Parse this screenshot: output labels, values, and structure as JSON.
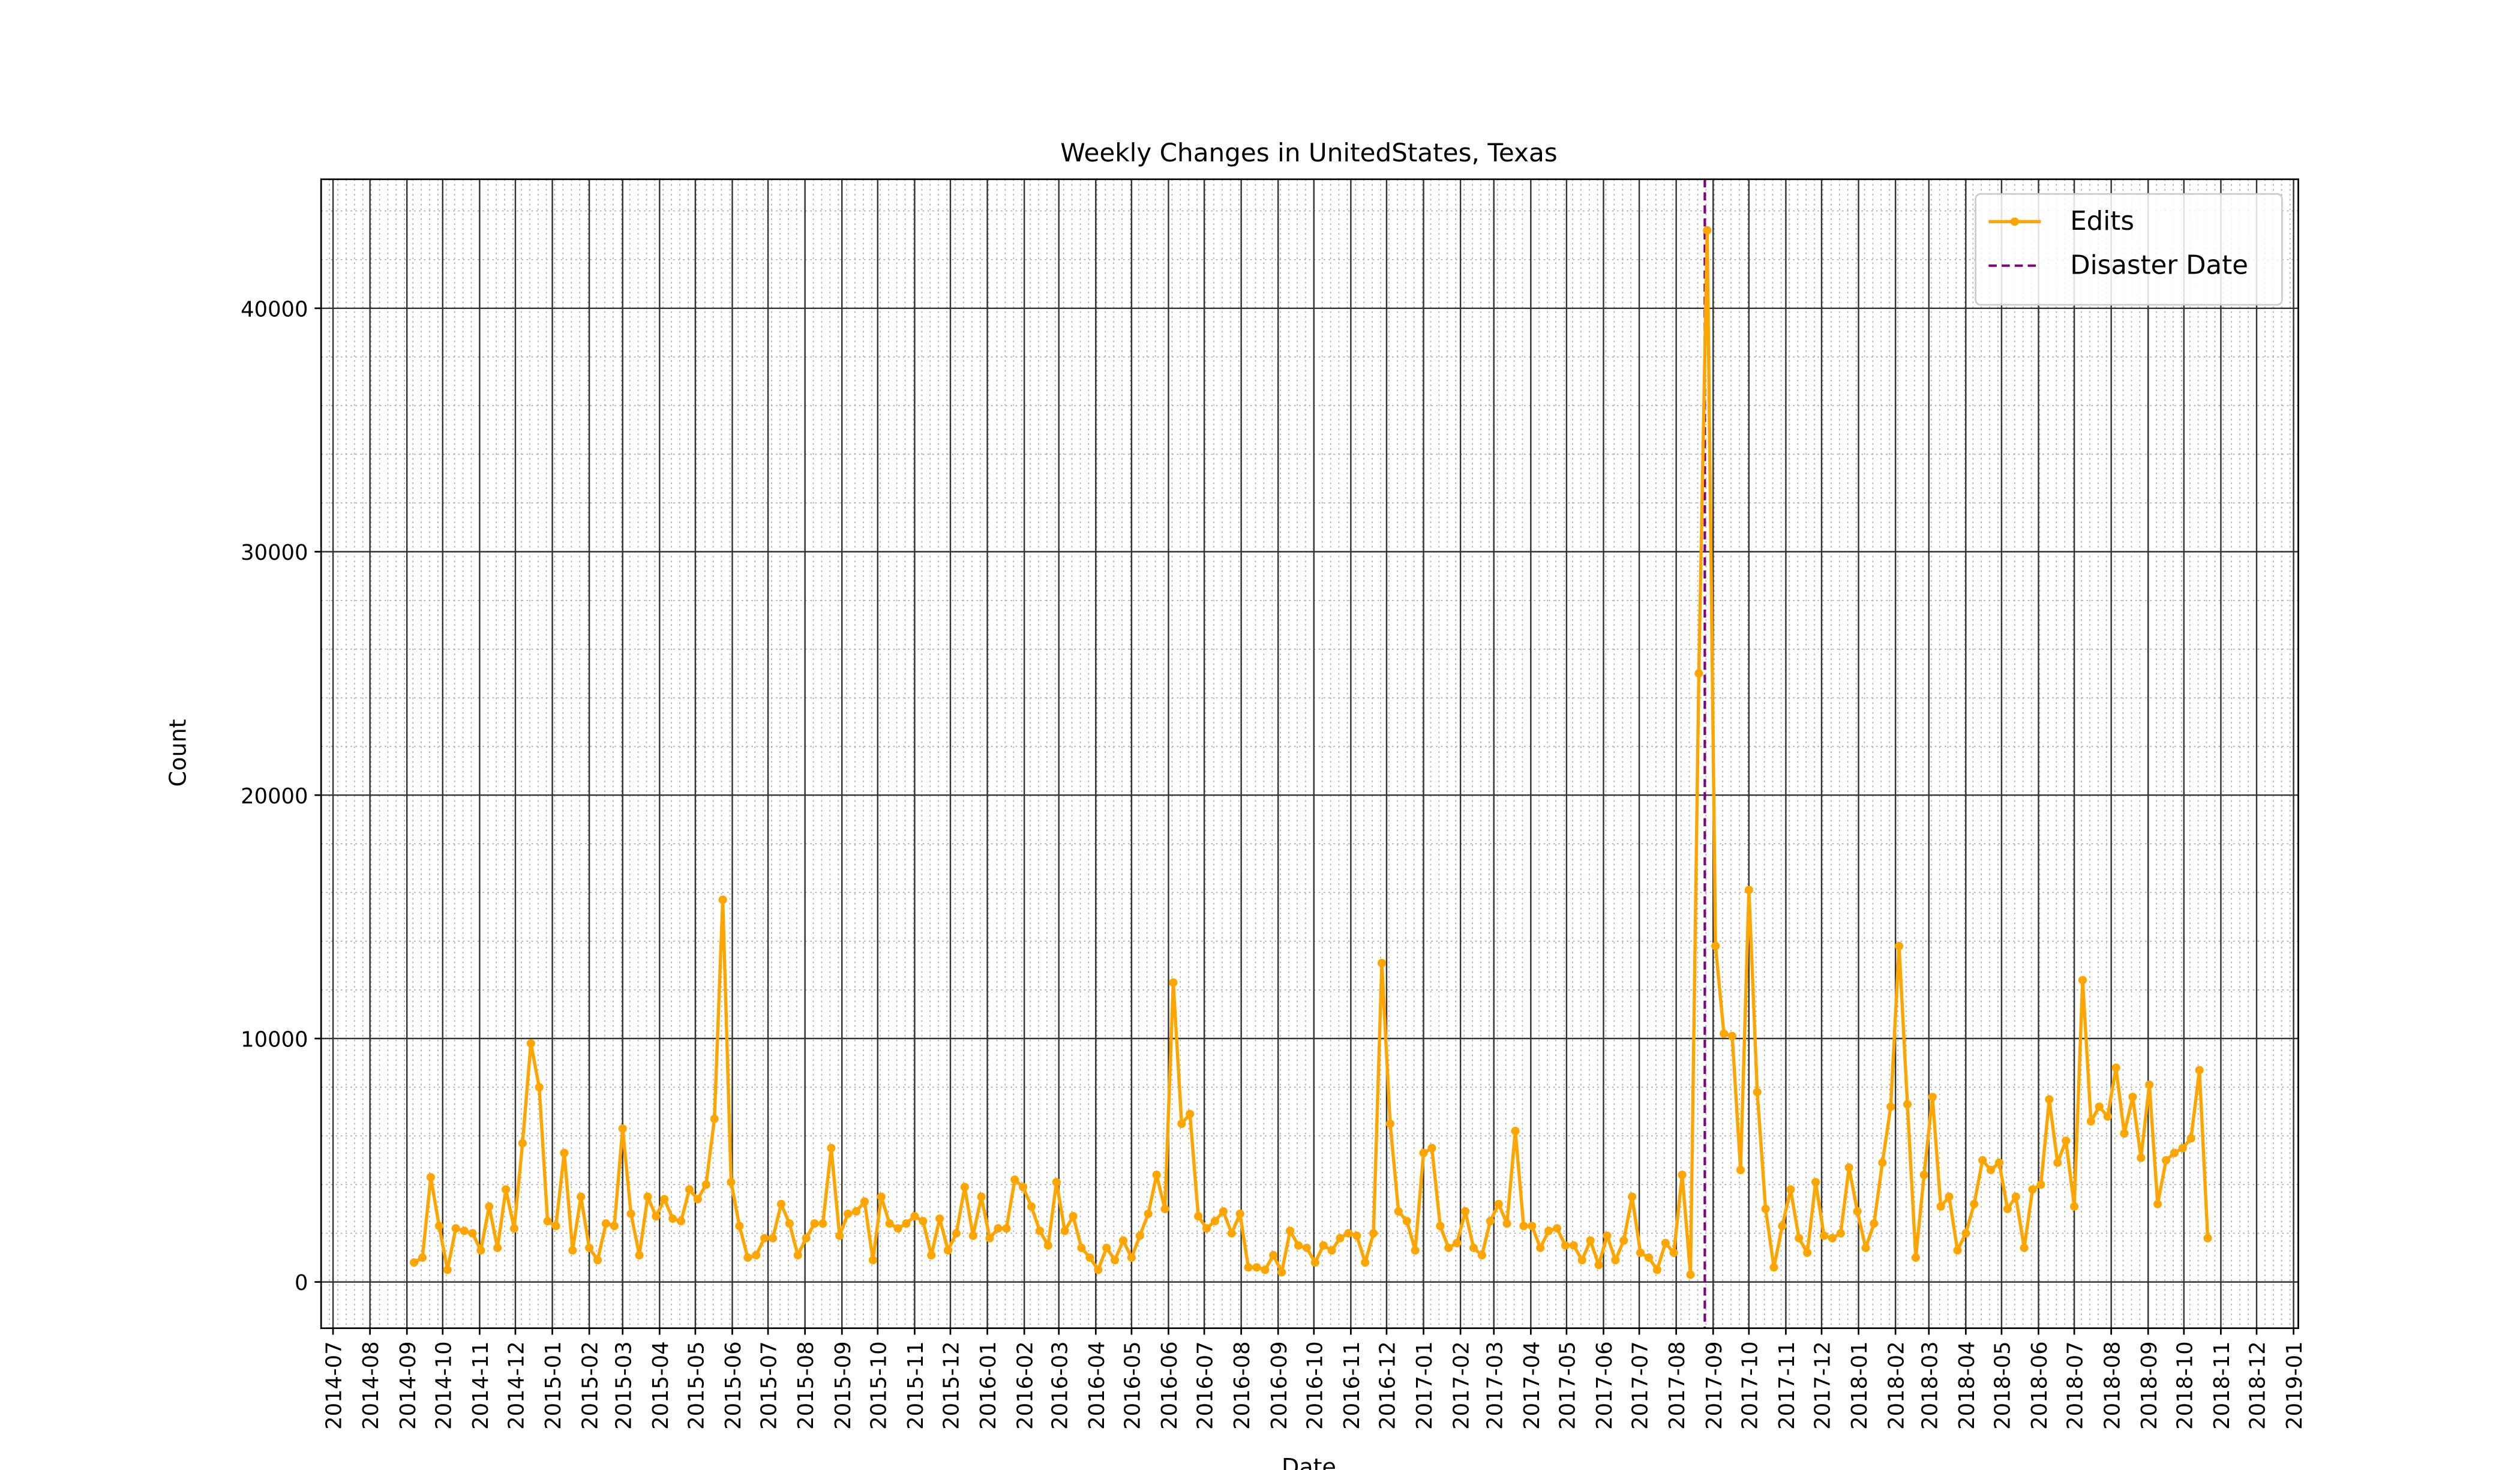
{
  "chart_data": {
    "type": "line",
    "title": "Weekly Changes in UnitedStates, Texas",
    "x_label": "Date",
    "y_label": "Count",
    "x": [
      "2014-09-07",
      "2014-09-14",
      "2014-09-21",
      "2014-09-28",
      "2014-10-05",
      "2014-10-12",
      "2014-10-19",
      "2014-10-26",
      "2014-11-02",
      "2014-11-09",
      "2014-11-16",
      "2014-11-23",
      "2014-11-30",
      "2014-12-07",
      "2014-12-14",
      "2014-12-21",
      "2014-12-28",
      "2015-01-04",
      "2015-01-11",
      "2015-01-18",
      "2015-01-25",
      "2015-02-01",
      "2015-02-08",
      "2015-02-15",
      "2015-02-22",
      "2015-03-01",
      "2015-03-08",
      "2015-03-15",
      "2015-03-22",
      "2015-03-29",
      "2015-04-05",
      "2015-04-12",
      "2015-04-19",
      "2015-04-26",
      "2015-05-03",
      "2015-05-10",
      "2015-05-17",
      "2015-05-24",
      "2015-05-31",
      "2015-06-07",
      "2015-06-14",
      "2015-06-21",
      "2015-06-28",
      "2015-07-05",
      "2015-07-12",
      "2015-07-19",
      "2015-07-26",
      "2015-08-02",
      "2015-08-09",
      "2015-08-16",
      "2015-08-23",
      "2015-08-30",
      "2015-09-06",
      "2015-09-13",
      "2015-09-20",
      "2015-09-27",
      "2015-10-04",
      "2015-10-11",
      "2015-10-18",
      "2015-10-25",
      "2015-11-01",
      "2015-11-08",
      "2015-11-15",
      "2015-11-22",
      "2015-11-29",
      "2015-12-06",
      "2015-12-13",
      "2015-12-20",
      "2015-12-27",
      "2016-01-03",
      "2016-01-10",
      "2016-01-17",
      "2016-01-24",
      "2016-01-31",
      "2016-02-07",
      "2016-02-14",
      "2016-02-21",
      "2016-02-28",
      "2016-03-06",
      "2016-03-13",
      "2016-03-20",
      "2016-03-27",
      "2016-04-03",
      "2016-04-10",
      "2016-04-17",
      "2016-04-24",
      "2016-05-01",
      "2016-05-08",
      "2016-05-15",
      "2016-05-22",
      "2016-05-29",
      "2016-06-05",
      "2016-06-12",
      "2016-06-19",
      "2016-06-26",
      "2016-07-03",
      "2016-07-10",
      "2016-07-17",
      "2016-07-24",
      "2016-07-31",
      "2016-08-07",
      "2016-08-14",
      "2016-08-21",
      "2016-08-28",
      "2016-09-04",
      "2016-09-11",
      "2016-09-18",
      "2016-09-25",
      "2016-10-02",
      "2016-10-09",
      "2016-10-16",
      "2016-10-23",
      "2016-10-30",
      "2016-11-06",
      "2016-11-13",
      "2016-11-20",
      "2016-11-27",
      "2016-12-04",
      "2016-12-11",
      "2016-12-18",
      "2016-12-25",
      "2017-01-01",
      "2017-01-08",
      "2017-01-15",
      "2017-01-22",
      "2017-01-29",
      "2017-02-05",
      "2017-02-12",
      "2017-02-19",
      "2017-02-26",
      "2017-03-05",
      "2017-03-12",
      "2017-03-19",
      "2017-03-26",
      "2017-04-02",
      "2017-04-09",
      "2017-04-16",
      "2017-04-23",
      "2017-04-30",
      "2017-05-07",
      "2017-05-14",
      "2017-05-21",
      "2017-05-28",
      "2017-06-04",
      "2017-06-11",
      "2017-06-18",
      "2017-06-25",
      "2017-07-02",
      "2017-07-09",
      "2017-07-16",
      "2017-07-23",
      "2017-07-30",
      "2017-08-06",
      "2017-08-13",
      "2017-08-20",
      "2017-08-27",
      "2017-09-03",
      "2017-09-10",
      "2017-09-17",
      "2017-09-24",
      "2017-10-01",
      "2017-10-08",
      "2017-10-15",
      "2017-10-22",
      "2017-10-29",
      "2017-11-05",
      "2017-11-12",
      "2017-11-19",
      "2017-11-26",
      "2017-12-03",
      "2017-12-10",
      "2017-12-17",
      "2017-12-24",
      "2017-12-31",
      "2018-01-07",
      "2018-01-14",
      "2018-01-21",
      "2018-01-28",
      "2018-02-04",
      "2018-02-11",
      "2018-02-18",
      "2018-02-25",
      "2018-03-04",
      "2018-03-11",
      "2018-03-18",
      "2018-03-25",
      "2018-04-01",
      "2018-04-08",
      "2018-04-15",
      "2018-04-22",
      "2018-04-29",
      "2018-05-06",
      "2018-05-13",
      "2018-05-20",
      "2018-05-27",
      "2018-06-03",
      "2018-06-10",
      "2018-06-17",
      "2018-06-24",
      "2018-07-01",
      "2018-07-08",
      "2018-07-15",
      "2018-07-22",
      "2018-07-29",
      "2018-08-05",
      "2018-08-12",
      "2018-08-19",
      "2018-08-26",
      "2018-09-02",
      "2018-09-09",
      "2018-09-16",
      "2018-09-23",
      "2018-09-30",
      "2018-10-07",
      "2018-10-14",
      "2018-10-21"
    ],
    "series": [
      {
        "name": "Edits",
        "color": "orange",
        "values": [
          800,
          1000,
          4300,
          2300,
          500,
          2200,
          2100,
          2000,
          1300,
          3100,
          1400,
          3800,
          2200,
          5700,
          9800,
          8000,
          2500,
          2300,
          5300,
          1300,
          3500,
          1400,
          900,
          2400,
          2300,
          6300,
          2800,
          1100,
          3500,
          2700,
          3400,
          2600,
          2500,
          3800,
          3400,
          4000,
          6700,
          15700,
          4100,
          2300,
          1000,
          1100,
          1800,
          1800,
          3200,
          2400,
          1100,
          1800,
          2400,
          2400,
          5500,
          1900,
          2800,
          2900,
          3300,
          900,
          3500,
          2400,
          2200,
          2400,
          2700,
          2500,
          1100,
          2600,
          1300,
          2000,
          3900,
          1900,
          3500,
          1800,
          2200,
          2200,
          4200,
          3900,
          3100,
          2100,
          1500,
          4100,
          2100,
          2700,
          1400,
          1000,
          500,
          1400,
          900,
          1700,
          1000,
          1900,
          2800,
          4400,
          3000,
          12300,
          6500,
          6900,
          2700,
          2200,
          2500,
          2900,
          2000,
          2800,
          600,
          600,
          500,
          1100,
          400,
          2100,
          1500,
          1400,
          800,
          1500,
          1300,
          1800,
          2000,
          1900,
          800,
          2000,
          13100,
          6500,
          2900,
          2500,
          1300,
          5300,
          5500,
          2300,
          1400,
          1600,
          2900,
          1400,
          1100,
          2500,
          3200,
          2400,
          6200,
          2300,
          2300,
          1400,
          2100,
          2200,
          1500,
          1500,
          900,
          1700,
          700,
          1900,
          900,
          1700,
          3500,
          1200,
          1000,
          500,
          1600,
          1200,
          4400,
          300,
          25000,
          43200,
          13800,
          10200,
          10100,
          4600,
          16100,
          7800,
          3000,
          600,
          2300,
          3800,
          1800,
          1200,
          4100,
          1900,
          1800,
          2000,
          4700,
          2900,
          1400,
          2400,
          4900,
          7200,
          13800,
          7300,
          1000,
          4400,
          7600,
          3100,
          3500,
          1300,
          2000,
          3200,
          5000,
          4600,
          4900,
          3000,
          3500,
          1400,
          3800,
          4000,
          7500,
          4900,
          5800,
          3100,
          12400,
          6600,
          7200,
          6800,
          8800,
          6100,
          7600,
          5100,
          8100,
          3200,
          5000,
          5300,
          5500,
          5900,
          8700,
          1800
        ]
      }
    ],
    "vlines": [
      {
        "name": "Disaster Date",
        "x": "2017-08-25",
        "color": "purple",
        "dashed": true
      }
    ],
    "xlim": [
      "2014-06-21",
      "2019-01-05"
    ],
    "xticks": [
      "2014-07",
      "2014-08",
      "2014-09",
      "2014-10",
      "2014-11",
      "2014-12",
      "2015-01",
      "2015-02",
      "2015-03",
      "2015-04",
      "2015-05",
      "2015-06",
      "2015-07",
      "2015-08",
      "2015-09",
      "2015-10",
      "2015-11",
      "2015-12",
      "2016-01",
      "2016-02",
      "2016-03",
      "2016-04",
      "2016-05",
      "2016-06",
      "2016-07",
      "2016-08",
      "2016-09",
      "2016-10",
      "2016-11",
      "2016-12",
      "2017-01",
      "2017-02",
      "2017-03",
      "2017-04",
      "2017-05",
      "2017-06",
      "2017-07",
      "2017-08",
      "2017-09",
      "2017-10",
      "2017-11",
      "2017-12",
      "2018-01",
      "2018-02",
      "2018-03",
      "2018-04",
      "2018-05",
      "2018-06",
      "2018-07",
      "2018-08",
      "2018-09",
      "2018-10",
      "2018-11",
      "2018-12",
      "2019-01"
    ],
    "ylim": [
      -1900,
      45300
    ],
    "yticks": [
      0,
      10000,
      20000,
      30000,
      40000
    ],
    "grid": true,
    "minor_grid": true,
    "legend": "upper right"
  }
}
